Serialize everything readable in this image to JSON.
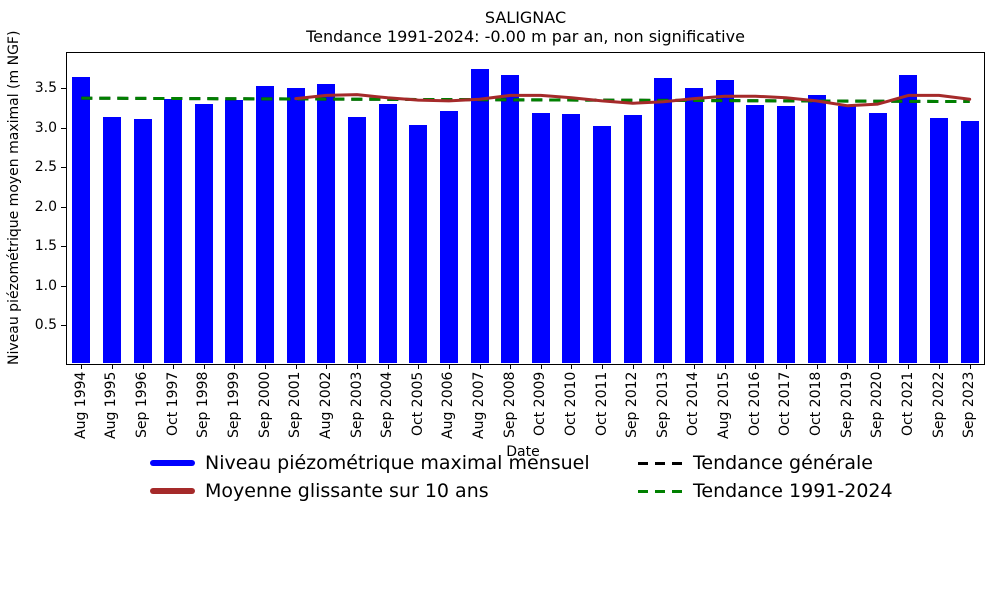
{
  "chart_data": {
    "type": "bar",
    "title": "SALIGNAC",
    "subtitle": "Tendance 1991-2024: -0.00 m par an, non significative",
    "xlabel": "Date",
    "ylabel": "Niveau piézométrique moyen maximal (m NGF)",
    "ylim": [
      0,
      3.96
    ],
    "yticks": [
      0.5,
      1.0,
      1.5,
      2.0,
      2.5,
      3.0,
      3.5
    ],
    "grid": false,
    "legend_position": "below, two columns, no frame",
    "categories": [
      "Aug 1994",
      "Aug 1995",
      "Sep 1996",
      "Oct 1997",
      "Sep 1998",
      "Sep 1999",
      "Sep 2000",
      "Sep 2001",
      "Aug 2002",
      "Sep 2003",
      "Sep 2004",
      "Oct 2005",
      "Aug 2006",
      "Aug 2007",
      "Sep 2008",
      "Oct 2009",
      "Oct 2010",
      "Oct 2011",
      "Sep 2012",
      "Sep 2013",
      "Oct 2014",
      "Aug 2015",
      "Oct 2016",
      "Oct 2017",
      "Oct 2018",
      "Sep 2019",
      "Sep 2020",
      "Oct 2021",
      "Sep 2022",
      "Sep 2023"
    ],
    "series": [
      {
        "name": "Niveau piézométrique maximal mensuel",
        "type": "bar",
        "color": "#0000ff",
        "values": [
          3.64,
          3.13,
          3.11,
          3.37,
          3.3,
          3.35,
          3.53,
          3.51,
          3.55,
          3.14,
          3.3,
          3.04,
          3.21,
          3.75,
          3.67,
          3.19,
          3.17,
          3.02,
          3.16,
          3.63,
          3.5,
          3.61,
          3.29,
          3.27,
          3.42,
          3.27,
          3.19,
          3.67,
          3.12,
          3.09
        ]
      },
      {
        "name": "Moyenne glissante sur 10 ans",
        "type": "line",
        "color": "#a52a2a",
        "values": [
          null,
          null,
          null,
          null,
          null,
          null,
          null,
          3.37,
          3.41,
          3.42,
          3.38,
          3.35,
          3.34,
          3.36,
          3.41,
          3.41,
          3.38,
          3.34,
          3.31,
          3.33,
          3.37,
          3.4,
          3.4,
          3.38,
          3.34,
          3.28,
          3.3,
          3.41,
          3.41,
          3.36
        ]
      },
      {
        "name": "Tendance générale",
        "type": "dashed-line",
        "color": "#000000",
        "trend": {
          "start": 3.375,
          "end": 3.332
        }
      },
      {
        "name": "Tendance 1991-2024",
        "type": "dashed-line",
        "color": "#008000",
        "trend": {
          "start": 3.375,
          "end": 3.332
        }
      }
    ]
  }
}
